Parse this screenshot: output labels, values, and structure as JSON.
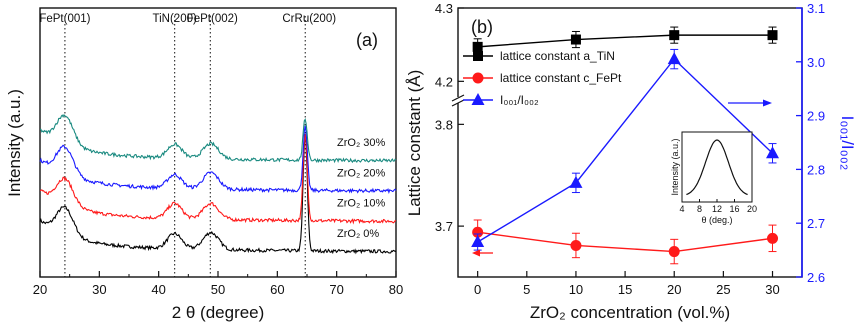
{
  "chart_data": [
    {
      "type": "line",
      "panel": "(a)",
      "xlabel": "2 θ (degree)",
      "ylabel": "Intensity (a.u.)",
      "xlim": [
        20,
        80
      ],
      "xticks": [
        20,
        30,
        40,
        50,
        60,
        70,
        80
      ],
      "peak_markers": [
        {
          "label": "FePt(001)",
          "x": 24.2
        },
        {
          "label": "TiN(200)",
          "x": 42.7
        },
        {
          "label": "FePt(002)",
          "x": 48.7
        },
        {
          "label": "CrRu(200)",
          "x": 64.7
        }
      ],
      "series": [
        {
          "name": "ZrO₂ 0%",
          "color": "#000000",
          "offset": 0.0,
          "peaks": {
            "fept001": 1.0,
            "tin": 0.55,
            "fept002": 0.62,
            "crru": 4.2
          }
        },
        {
          "name": "ZrO₂ 10%",
          "color": "#ff1a1a",
          "offset": 1.1,
          "peaks": {
            "fept001": 0.95,
            "tin": 0.55,
            "fept002": 0.58,
            "crru": 3.1
          }
        },
        {
          "name": "ZrO₂ 20%",
          "color": "#1a1aff",
          "offset": 2.2,
          "peaks": {
            "fept001": 1.0,
            "tin": 0.5,
            "fept002": 0.6,
            "crru": 2.3
          }
        },
        {
          "name": "ZrO₂ 30%",
          "color": "#1a8a80",
          "offset": 3.3,
          "peaks": {
            "fept001": 1.05,
            "tin": 0.5,
            "fept002": 0.55,
            "crru": 1.5
          }
        }
      ]
    },
    {
      "type": "line",
      "panel": "(b)",
      "xlabel": "ZrO₂ concentration (vol.%)",
      "ylabel_left": "Lattice constant (Å)",
      "ylabel_right": "I₀₀₁/I₀₀₂",
      "x": [
        0,
        10,
        20,
        30
      ],
      "xlim": [
        -2,
        33
      ],
      "xticks": [
        0,
        5,
        10,
        15,
        20,
        25,
        30
      ],
      "left_axis_ticks": [
        3.7,
        3.8,
        4.2,
        4.3
      ],
      "left_axis_break": [
        3.82,
        4.18
      ],
      "right_ylim": [
        2.6,
        3.1
      ],
      "right_ticks": [
        2.6,
        2.7,
        2.8,
        2.9,
        3.0,
        3.1
      ],
      "series": [
        {
          "name": "lattice constant a_TiN",
          "axis": "left",
          "color": "#000000",
          "marker": "square",
          "values": [
            4.247,
            4.257,
            4.263,
            4.263
          ],
          "errors": [
            0.011,
            0.011,
            0.011,
            0.011
          ]
        },
        {
          "name": "lattice constant c_FePt",
          "axis": "left",
          "color": "#ff1a1a",
          "marker": "circle",
          "values": [
            3.694,
            3.681,
            3.675,
            3.688
          ],
          "errors": [
            0.012,
            0.012,
            0.012,
            0.013
          ]
        },
        {
          "name": "I₀₀₁/I₀₀₂",
          "axis": "right",
          "color": "#1a1aff",
          "marker": "triangle",
          "values": [
            2.665,
            2.775,
            3.005,
            2.83
          ],
          "errors": [
            0.015,
            0.018,
            0.018,
            0.018
          ]
        }
      ],
      "legend_position": "left",
      "inset": {
        "xlabel": "θ (deg.)",
        "ylabel": "Intensity (a.u.)",
        "xticks": [
          4,
          8,
          12,
          16,
          20
        ],
        "xlim": [
          4,
          20
        ],
        "peak_center": 12,
        "peak_sigma": 2.6
      }
    }
  ]
}
